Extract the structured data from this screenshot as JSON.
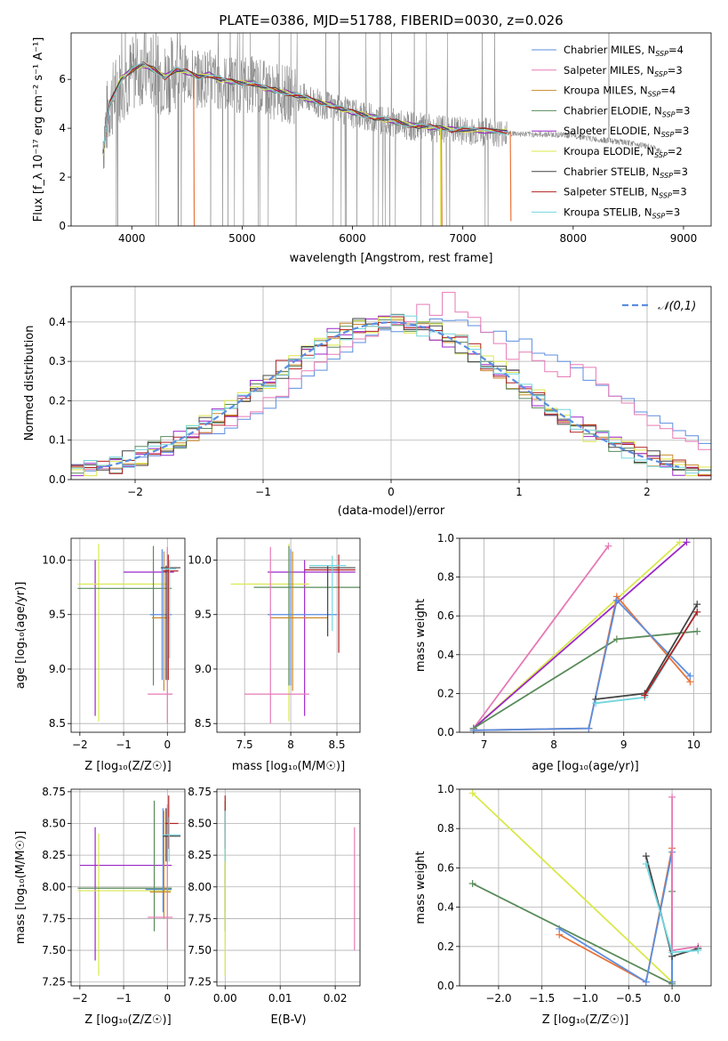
{
  "figure_title": "PLATE=0386, MJD=51788, FIBERID=0030, z=0.026",
  "colors": {
    "Chabrier MILES": "#5b8ee0",
    "Salpeter MILES": "#e67ab5",
    "Kroupa MILES": "#c9892a",
    "Chabrier ELODIE": "#5a8b5a",
    "Salpeter ELODIE": "#9b27c9",
    "Kroupa ELODIE": "#d9e84a",
    "Chabrier STELIB": "#444444",
    "Salpeter STELIB": "#b22222",
    "Kroupa STELIB": "#72d6de",
    "spectrum": "#808080",
    "model_orange": "#e8743b"
  },
  "chart_data": [
    {
      "id": "spectrum",
      "type": "line",
      "title": "PLATE=0386, MJD=51788, FIBERID=0030, z=0.026",
      "xlabel": "wavelength [Angstrom, rest frame]",
      "ylabel": "Flux [f_λ 10⁻¹⁷ erg cm⁻² s⁻¹ A⁻¹]",
      "xlim": [
        3450,
        9250
      ],
      "ylim": [
        0,
        7.9
      ],
      "xticks": [
        4000,
        5000,
        6000,
        7000,
        8000,
        9000
      ],
      "yticks": [
        0,
        2,
        4,
        6
      ],
      "legend_position": "top-right",
      "legend": [
        {
          "text": "Chabrier MILES, N",
          "sub": "SSP",
          "tail": "=4",
          "color_key": "Chabrier MILES"
        },
        {
          "text": "Salpeter MILES, N",
          "sub": "SSP",
          "tail": "=3",
          "color_key": "Salpeter MILES"
        },
        {
          "text": "Kroupa MILES, N",
          "sub": "SSP",
          "tail": "=4",
          "color_key": "Kroupa MILES"
        },
        {
          "text": "Chabrier ELODIE, N",
          "sub": "SSP",
          "tail": "=3",
          "color_key": "Chabrier ELODIE"
        },
        {
          "text": "Salpeter ELODIE, N",
          "sub": "SSP",
          "tail": "=3",
          "color_key": "Salpeter ELODIE"
        },
        {
          "text": "Kroupa ELODIE, N",
          "sub": "SSP",
          "tail": "=2",
          "color_key": "Kroupa ELODIE"
        },
        {
          "text": "Chabrier STELIB, N",
          "sub": "SSP",
          "tail": "=3",
          "color_key": "Chabrier STELIB"
        },
        {
          "text": "Salpeter STELIB, N",
          "sub": "SSP",
          "tail": "=3",
          "color_key": "Salpeter STELIB"
        },
        {
          "text": "Kroupa STELIB, N",
          "sub": "SSP",
          "tail": "=3",
          "color_key": "Kroupa STELIB"
        }
      ],
      "data_continuum": [
        [
          3740,
          3.5
        ],
        [
          3800,
          5.0
        ],
        [
          3900,
          5.8
        ],
        [
          4000,
          6.2
        ],
        [
          4100,
          6.5
        ],
        [
          4200,
          6.3
        ],
        [
          4300,
          6.0
        ],
        [
          4400,
          6.4
        ],
        [
          4500,
          6.2
        ],
        [
          4600,
          6.0
        ],
        [
          4700,
          6.1
        ],
        [
          4800,
          5.9
        ],
        [
          4900,
          5.8
        ],
        [
          5000,
          5.8
        ],
        [
          5100,
          5.8
        ],
        [
          5200,
          5.6
        ],
        [
          5300,
          5.5
        ],
        [
          5400,
          5.4
        ],
        [
          5500,
          5.3
        ],
        [
          5600,
          5.2
        ],
        [
          5700,
          5.0
        ],
        [
          5800,
          4.9
        ],
        [
          5900,
          4.75
        ],
        [
          6000,
          4.6
        ],
        [
          6100,
          4.5
        ],
        [
          6200,
          4.4
        ],
        [
          6300,
          4.3
        ],
        [
          6400,
          4.2
        ],
        [
          6500,
          4.1
        ],
        [
          6600,
          4.05
        ],
        [
          6700,
          4.0
        ],
        [
          6800,
          3.95
        ],
        [
          6900,
          3.9
        ],
        [
          7000,
          3.9
        ],
        [
          7200,
          3.85
        ],
        [
          7400,
          3.8
        ],
        [
          7600,
          3.75
        ],
        [
          7800,
          3.75
        ],
        [
          8000,
          3.7
        ],
        [
          8200,
          3.55
        ],
        [
          8400,
          3.45
        ],
        [
          8600,
          3.35
        ],
        [
          8800,
          3.1
        ]
      ],
      "model_continuum": [
        [
          3740,
          3.0
        ],
        [
          3800,
          5.0
        ],
        [
          3900,
          6.0
        ],
        [
          4000,
          6.4
        ],
        [
          4100,
          6.6
        ],
        [
          4200,
          6.4
        ],
        [
          4300,
          6.1
        ],
        [
          4400,
          6.4
        ],
        [
          4500,
          6.3
        ],
        [
          4600,
          6.1
        ],
        [
          4700,
          6.2
        ],
        [
          4800,
          6.0
        ],
        [
          4900,
          5.9
        ],
        [
          5000,
          5.85
        ],
        [
          5100,
          5.85
        ],
        [
          5200,
          5.65
        ],
        [
          5300,
          5.55
        ],
        [
          5400,
          5.45
        ],
        [
          5500,
          5.35
        ],
        [
          5600,
          5.2
        ],
        [
          5700,
          5.05
        ],
        [
          5800,
          4.95
        ],
        [
          5900,
          4.8
        ],
        [
          6000,
          4.65
        ],
        [
          6100,
          4.55
        ],
        [
          6200,
          4.45
        ],
        [
          6300,
          4.35
        ],
        [
          6400,
          4.25
        ],
        [
          6500,
          4.15
        ],
        [
          6600,
          4.1
        ],
        [
          6700,
          4.05
        ],
        [
          6800,
          4.0
        ],
        [
          6900,
          3.95
        ],
        [
          7000,
          3.95
        ],
        [
          7200,
          3.9
        ],
        [
          7400,
          3.85
        ]
      ],
      "model_spikes": [
        [
          4560,
          0
        ],
        [
          6805,
          0
        ],
        [
          7430,
          0.2
        ]
      ]
    },
    {
      "id": "residual_hist",
      "type": "bar",
      "xlabel": "(data-model)/error",
      "ylabel": "Normed distribution",
      "xlim": [
        -2.5,
        2.5
      ],
      "ylim": [
        0,
        0.49
      ],
      "xticks": [
        -2,
        -1,
        0,
        1,
        2
      ],
      "yticks": [
        0.0,
        0.1,
        0.2,
        0.3,
        0.4
      ],
      "legend_position": "top-right",
      "legend": [
        {
          "label": "𝒩(0,1)",
          "style": "dashed",
          "color_key": "Chabrier MILES"
        }
      ],
      "bin_width": 0.1,
      "bin_start": -2.5,
      "series_heights": [
        {
          "name": "Chabrier MILES",
          "values": [
            0.03,
            0.03,
            0.03,
            0.03,
            0.04,
            0.05,
            0.06,
            0.07,
            0.08,
            0.1,
            0.11,
            0.12,
            0.13,
            0.15,
            0.17,
            0.19,
            0.21,
            0.24,
            0.26,
            0.28,
            0.3,
            0.32,
            0.34,
            0.36,
            0.38,
            0.38,
            0.39,
            0.4,
            0.4,
            0.41,
            0.4,
            0.4,
            0.38,
            0.37,
            0.36,
            0.35,
            0.33,
            0.32,
            0.3,
            0.28,
            0.26,
            0.24,
            0.22,
            0.2,
            0.18,
            0.16,
            0.14,
            0.12,
            0.11,
            0.1
          ]
        },
        {
          "name": "Salpeter MILES",
          "values": [
            0.03,
            0.03,
            0.03,
            0.02,
            0.04,
            0.06,
            0.06,
            0.08,
            0.09,
            0.11,
            0.12,
            0.14,
            0.14,
            0.16,
            0.18,
            0.2,
            0.22,
            0.25,
            0.27,
            0.3,
            0.32,
            0.34,
            0.35,
            0.37,
            0.38,
            0.39,
            0.4,
            0.44,
            0.42,
            0.47,
            0.43,
            0.42,
            0.38,
            0.34,
            0.31,
            0.33,
            0.3,
            0.28,
            0.27,
            0.3,
            0.29,
            0.25,
            0.21,
            0.19,
            0.16,
            0.14,
            0.12,
            0.11,
            0.09,
            0.08
          ]
        }
      ]
    },
    {
      "id": "age_vs_Z",
      "type": "scatter",
      "xlabel": "Z [log₁₀(Z/Z☉)]",
      "ylabel": "age  [log₁₀(age/yr)]",
      "xlim": [
        -2.2,
        0.4
      ],
      "ylim": [
        8.42,
        10.2
      ],
      "xticks": [
        -2,
        -1,
        0
      ],
      "yticks": [
        8.5,
        9.0,
        9.5,
        10.0
      ],
      "errorbars": [
        {
          "series": "Salpeter ELODIE",
          "x": -1.65,
          "y": 9.3,
          "xerr": 0,
          "yerr": [
            9.3,
            8.57,
            10.0
          ]
        },
        {
          "series": "Kroupa ELODIE",
          "x": -1.55,
          "y": 9.3,
          "yrange": [
            8.5,
            10.15
          ]
        },
        {
          "series": "Salpeter ELODIE",
          "xrange": [
            -1.0,
            0.1
          ],
          "y": 9.89
        },
        {
          "series": "Kroupa ELODIE",
          "xrange": [
            -2.1,
            0.1
          ],
          "y": 9.78
        },
        {
          "series": "Chabrier ELODIE",
          "xrange": [
            -2.1,
            0.1
          ],
          "y": 9.74
        },
        {
          "series": "Chabrier MILES",
          "xrange": [
            -0.4,
            0.1
          ],
          "y": 9.5
        },
        {
          "series": "Kroupa MILES",
          "xrange": [
            -0.35,
            0.1
          ],
          "y": 9.47
        },
        {
          "series": "Salpeter MILES",
          "xrange": [
            -0.45,
            0.1
          ],
          "y": 8.77
        },
        {
          "series": "Chabrier STELIB",
          "xrange": [
            -0.15,
            0.3
          ],
          "y": 9.93
        },
        {
          "series": "Chabrier ELODIE",
          "x": -0.15,
          "yrange": [
            8.8,
            10.13
          ]
        },
        {
          "series": "Salpeter MILES",
          "x": 0.0,
          "yrange": [
            8.5,
            10.1
          ]
        },
        {
          "series": "Salpeter STELIB",
          "x": -0.02,
          "yrange": [
            8.9,
            10.0
          ]
        }
      ]
    },
    {
      "id": "age_vs_mass",
      "type": "scatter",
      "xlabel": "mass [log₁₀(M/M☉)]",
      "ylabel": "",
      "xlim": [
        7.2,
        8.75
      ],
      "ylim": [
        8.42,
        10.2
      ],
      "xticks": [
        7.5,
        8.0,
        8.5
      ],
      "yticks": [
        8.5,
        9.0,
        9.5,
        10.0
      ]
    },
    {
      "id": "mass_weight_vs_age",
      "type": "line",
      "xlabel": "age  [log₁₀(age/yr)]",
      "ylabel": "mass weight",
      "xlim": [
        6.65,
        10.25
      ],
      "ylim": [
        0,
        1
      ],
      "xticks": [
        7,
        8,
        9,
        10
      ],
      "yticks": [
        0.0,
        0.2,
        0.4,
        0.6,
        0.8,
        1.0
      ],
      "series": [
        {
          "name": "Salpeter MILES",
          "x": [
            6.85,
            8.78
          ],
          "y": [
            0.02,
            0.96
          ]
        },
        {
          "name": "Kroupa ELODIE",
          "x": [
            6.85,
            9.8
          ],
          "y": [
            0.02,
            0.98
          ]
        },
        {
          "name": "Salpeter ELODIE",
          "x": [
            6.85,
            9.9
          ],
          "y": [
            0.02,
            0.98
          ]
        },
        {
          "name": "Chabrier ELODIE",
          "x": [
            6.85,
            8.9,
            10.05
          ],
          "y": [
            0.02,
            0.48,
            0.52
          ]
        },
        {
          "name": "Kroupa MILES",
          "x": [
            6.85,
            8.5,
            8.9,
            9.95
          ],
          "y": [
            0.01,
            0.02,
            0.7,
            0.26
          ]
        },
        {
          "name": "Chabrier MILES",
          "x": [
            6.85,
            8.5,
            8.9,
            9.95
          ],
          "y": [
            0.01,
            0.02,
            0.68,
            0.29
          ]
        },
        {
          "name": "Chabrier STELIB",
          "x": [
            8.6,
            9.3,
            10.05
          ],
          "y": [
            0.17,
            0.2,
            0.66
          ]
        },
        {
          "name": "Kroupa STELIB",
          "x": [
            8.6,
            9.3,
            10.05
          ],
          "y": [
            0.15,
            0.18,
            0.62
          ]
        },
        {
          "name": "Salpeter STELIB",
          "x": [
            9.3,
            10.05
          ],
          "y": [
            0.19,
            0.62
          ]
        }
      ]
    },
    {
      "id": "mass_vs_Z",
      "type": "scatter",
      "xlabel": "Z [log₁₀(Z/Z☉)]",
      "ylabel": "mass [log₁₀(M/M☉)]",
      "xlim": [
        -2.2,
        0.4
      ],
      "ylim": [
        7.22,
        8.77
      ],
      "xticks": [
        -2,
        -1,
        0
      ],
      "yticks": [
        7.25,
        7.5,
        7.75,
        8.0,
        8.25,
        8.5,
        8.75
      ]
    },
    {
      "id": "mass_vs_EBV",
      "type": "scatter",
      "xlabel": "E(B-V)",
      "ylabel": "",
      "xlim": [
        -0.0015,
        0.0245
      ],
      "ylim": [
        7.22,
        8.77
      ],
      "xticks": [
        "0.00",
        "0.01",
        "0.02"
      ],
      "yticks": [
        7.25,
        7.5,
        7.75,
        8.0,
        8.25,
        8.5,
        8.75
      ]
    },
    {
      "id": "mass_weight_vs_Z",
      "type": "line",
      "xlabel": "Z [log₁₀(Z/Z☉)]",
      "ylabel": "mass weight",
      "xlim": [
        -2.45,
        0.45
      ],
      "ylim": [
        0,
        1
      ],
      "xticks": [
        -2.0,
        -1.5,
        -1.0,
        -0.5,
        0.0
      ],
      "yticks": [
        0.0,
        0.2,
        0.4,
        0.6,
        0.8,
        1.0
      ],
      "series": [
        {
          "name": "Kroupa ELODIE",
          "x": [
            -2.3,
            0.0
          ],
          "y": [
            0.98,
            0.02
          ]
        },
        {
          "name": "Chabrier ELODIE",
          "x": [
            -2.3,
            0.0,
            0.0
          ],
          "y": [
            0.52,
            0.01,
            0.48
          ]
        },
        {
          "name": "Kroupa MILES",
          "x": [
            -1.3,
            -0.3,
            0.0,
            0.0
          ],
          "y": [
            0.26,
            0.02,
            0.7,
            0.02
          ]
        },
        {
          "name": "Chabrier MILES",
          "x": [
            -1.3,
            -0.3,
            0.0,
            0.0
          ],
          "y": [
            0.29,
            0.02,
            0.68,
            0.02
          ]
        },
        {
          "name": "Salpeter MILES",
          "x": [
            0.0,
            0.0,
            0.3
          ],
          "y": [
            0.96,
            0.18,
            0.2
          ]
        },
        {
          "name": "Chabrier STELIB",
          "x": [
            -0.3,
            0.0,
            0.3
          ],
          "y": [
            0.66,
            0.15,
            0.19
          ]
        },
        {
          "name": "Kroupa STELIB",
          "x": [
            -0.3,
            0.0,
            0.3
          ],
          "y": [
            0.62,
            0.17,
            0.18
          ]
        }
      ]
    }
  ]
}
